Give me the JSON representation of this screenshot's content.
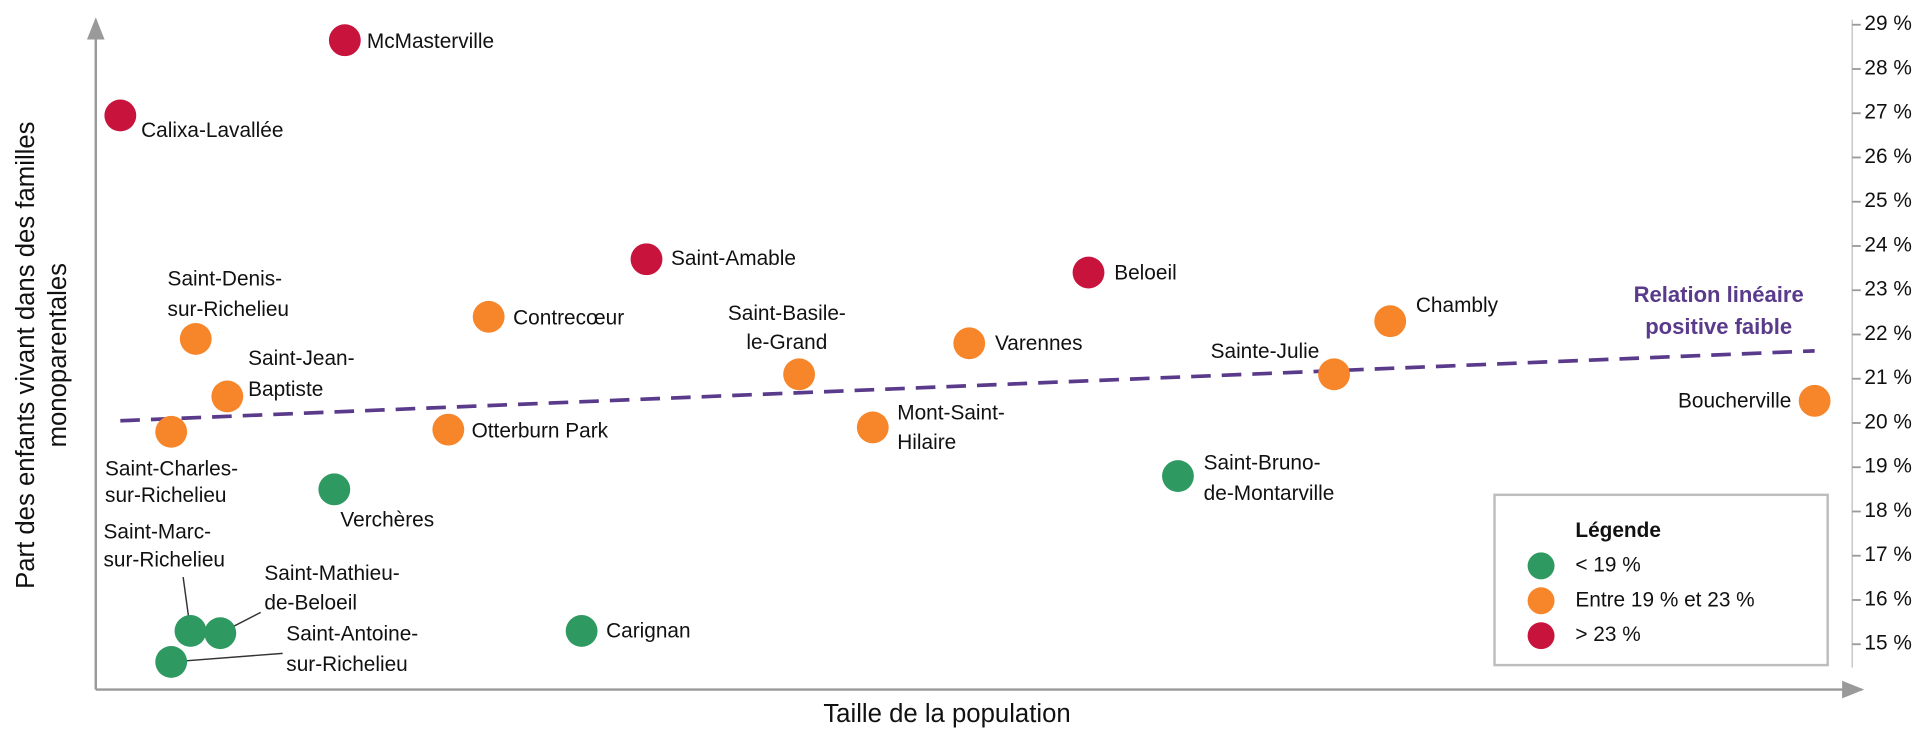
{
  "chart_data": {
    "type": "scatter",
    "xlabel": "Taille de la population",
    "ylabel": [
      "Part des enfants vivant dans des familles",
      "monoparentales"
    ],
    "xlim": [
      0,
      100
    ],
    "ylim": [
      14,
      29
    ],
    "yticks": [
      {
        "value": 15,
        "label": "15 %"
      },
      {
        "value": 16,
        "label": "16 %"
      },
      {
        "value": 17,
        "label": "17 %"
      },
      {
        "value": 18,
        "label": "18 %"
      },
      {
        "value": 19,
        "label": "19 %"
      },
      {
        "value": 20,
        "label": "20 %"
      },
      {
        "value": 21,
        "label": "21 %"
      },
      {
        "value": 22,
        "label": "22 %"
      },
      {
        "value": 23,
        "label": "23 %"
      },
      {
        "value": 24,
        "label": "24 %"
      },
      {
        "value": 25,
        "label": "25 %"
      },
      {
        "value": 26,
        "label": "26 %"
      },
      {
        "value": 27,
        "label": "27 %"
      },
      {
        "value": 28,
        "label": "28 %"
      },
      {
        "value": 29,
        "label": "29 %"
      }
    ],
    "legend": {
      "title": "Légende",
      "position": "lower right"
    },
    "series": [
      {
        "name": "< 19 %",
        "color": "#2e9a62",
        "x": [
          61.7,
          13.6,
          5.4,
          7.1,
          4.3,
          27.7
        ],
        "values": [
          18.8,
          18.5,
          15.3,
          15.25,
          14.6,
          15.3
        ],
        "labels": [
          [
            "Saint-Bruno-",
            "de-Montarville"
          ],
          [
            "Verchères"
          ],
          [
            "Saint-Marc-",
            "sur-Richelieu"
          ],
          [
            "Saint-Mathieu-",
            "de-Beloeil"
          ],
          [
            "Saint-Antoine-",
            "sur-Richelieu"
          ],
          [
            "Carignan"
          ]
        ]
      },
      {
        "name": "Entre 19 % et 23 %",
        "color": "#f7862a",
        "x": [
          5.7,
          22.4,
          40.1,
          49.8,
          73.8,
          70.6,
          7.5,
          98.0,
          4.3,
          20.1,
          44.3
        ],
        "values": [
          21.9,
          22.4,
          21.1,
          21.8,
          22.3,
          21.1,
          20.6,
          20.5,
          19.8,
          19.85,
          19.9
        ],
        "labels": [
          [
            "Saint-Denis-",
            "sur-Richelieu"
          ],
          [
            "Contrecœur"
          ],
          [
            "Saint-Basile-",
            "le-Grand"
          ],
          [
            "Varennes"
          ],
          [
            "Chambly"
          ],
          [
            "Sainte-Julie"
          ],
          [
            "Saint-Jean-",
            "Baptiste"
          ],
          [
            "Boucherville"
          ],
          [
            "Saint-Charles-",
            "sur-Richelieu"
          ],
          [
            "Otterburn Park"
          ],
          [
            "Mont-Saint-",
            "Hilaire"
          ]
        ]
      },
      {
        "name": "> 23 %",
        "color": "#c8143c",
        "x": [
          14.2,
          1.4,
          31.4,
          56.6
        ],
        "values": [
          28.65,
          26.95,
          23.7,
          23.4
        ],
        "labels": [
          [
            "McMasterville"
          ],
          [
            "Calixa-Lavallée"
          ],
          [
            "Saint-Amable"
          ],
          [
            "Beloeil"
          ]
        ]
      }
    ],
    "trendline": {
      "color": "#5a3a8a",
      "x": [
        1.4,
        98.0
      ],
      "y": [
        20.05,
        21.63
      ]
    },
    "annotation": [
      "Relation linéaire",
      "positive faible"
    ]
  }
}
